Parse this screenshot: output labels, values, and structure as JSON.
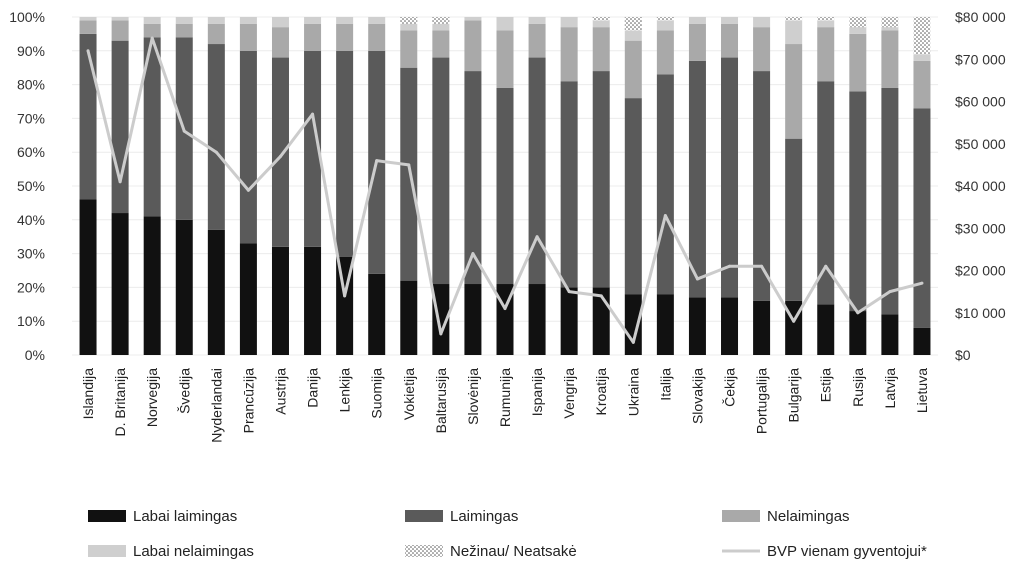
{
  "chart_data": {
    "type": "bar",
    "stacked": true,
    "percent_axis_ticks": [
      "0%",
      "10%",
      "20%",
      "30%",
      "40%",
      "50%",
      "60%",
      "70%",
      "80%",
      "90%",
      "100%"
    ],
    "right_axis_ticks": [
      "$0",
      "$10 000",
      "$20 000",
      "$30 000",
      "$40 000",
      "$50 000",
      "$60 000",
      "$70 000",
      "$80 000"
    ],
    "ylim": [
      0,
      100
    ],
    "y2lim": [
      0,
      80000
    ],
    "categories": [
      "Islandija",
      "D. Britanija",
      "Norvegija",
      "Švedija",
      "Nyderlandai",
      "Prancūzija",
      "Austrija",
      "Danija",
      "Lenkija",
      "Suomija",
      "Vokietija",
      "Baltarusija",
      "Slovėnija",
      "Rumunija",
      "Ispanija",
      "Vengrija",
      "Kroatija",
      "Ukraina",
      "Italija",
      "Slovakija",
      "Čekija",
      "Portugalija",
      "Bulgarija",
      "Estija",
      "Rusija",
      "Latvija",
      "Lietuva"
    ],
    "series": [
      {
        "name": "Labai laimingas",
        "values": [
          46,
          42,
          41,
          40,
          37,
          33,
          32,
          32,
          29,
          24,
          22,
          21,
          21,
          21,
          21,
          20,
          20,
          18,
          18,
          17,
          17,
          16,
          16,
          15,
          13,
          12,
          8
        ]
      },
      {
        "name": "Laimingas",
        "values": [
          49,
          51,
          53,
          54,
          55,
          57,
          56,
          58,
          61,
          66,
          63,
          67,
          63,
          58,
          67,
          61,
          64,
          58,
          65,
          70,
          71,
          68,
          48,
          66,
          65,
          67,
          65
        ]
      },
      {
        "name": "Nelaimingas",
        "values": [
          4,
          6,
          4,
          4,
          6,
          8,
          9,
          8,
          8,
          8,
          11,
          8,
          15,
          17,
          10,
          16,
          13,
          17,
          13,
          11,
          10,
          13,
          28,
          16,
          17,
          17,
          14
        ]
      },
      {
        "name": "Labai nelaimingas",
        "values": [
          1,
          1,
          2,
          2,
          2,
          2,
          3,
          2,
          2,
          2,
          2,
          2,
          1,
          4,
          2,
          3,
          2,
          3,
          3,
          2,
          2,
          3,
          7,
          2,
          2,
          1,
          2
        ]
      },
      {
        "name": "Nežinau/ Neatsakė",
        "values": [
          0,
          0,
          0,
          0,
          0,
          0,
          0,
          0,
          0,
          0,
          2,
          2,
          0,
          0,
          0,
          0,
          1,
          4,
          1,
          0,
          0,
          0,
          1,
          1,
          3,
          3,
          11
        ]
      }
    ],
    "line_series": {
      "name": "BVP vienam gyventojui*",
      "values": [
        72000,
        41000,
        75000,
        53000,
        48000,
        39000,
        47000,
        57000,
        14000,
        46000,
        45000,
        5000,
        24000,
        11000,
        28000,
        15000,
        14000,
        3000,
        33000,
        18000,
        21000,
        21000,
        8000,
        21000,
        10000,
        15000,
        17000
      ]
    },
    "colors": {
      "Labai laimingas": "#111111",
      "Laimingas": "#5a5a5a",
      "Nelaimingas": "#a9a9a9",
      "Labai nelaimingas": "#cfcfcf",
      "Nežinau/ Neatsakė": "#ffffff",
      "BVP vienam gyventojui*": "#cccccc"
    },
    "legend": {
      "placement": "bottom",
      "entries": [
        "Labai laimingas",
        "Laimingas",
        "Nelaimingas",
        "Labai nelaimingas",
        "Nežinau/ Neatsakė",
        "BVP vienam gyventojui*"
      ]
    }
  }
}
